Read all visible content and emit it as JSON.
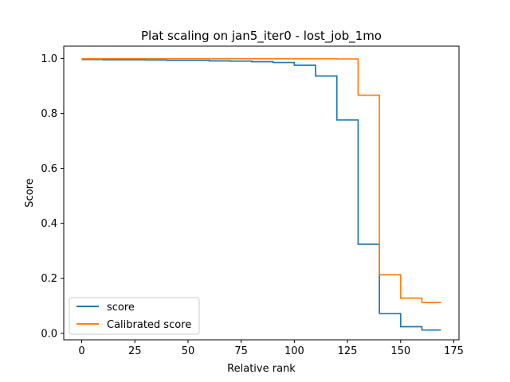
{
  "chart_data": {
    "type": "line",
    "title": "Plat scaling on jan5_iter0 - lost_job_1mo",
    "xlabel": "Relative rank",
    "ylabel": "Score",
    "xlim": [
      -8.45,
      177.45
    ],
    "ylim": [
      -0.0237,
      1.0445
    ],
    "xticks": [
      0,
      25,
      50,
      75,
      100,
      125,
      150,
      175
    ],
    "xtick_labels": [
      "0",
      "25",
      "50",
      "75",
      "100",
      "125",
      "150",
      "175"
    ],
    "yticks": [
      0.0,
      0.2,
      0.4,
      0.6,
      0.8,
      1.0
    ],
    "ytick_labels": [
      "0.0",
      "0.2",
      "0.4",
      "0.6",
      "0.8",
      "1.0"
    ],
    "grid": false,
    "legend": "lower-left",
    "series": [
      {
        "name": "score",
        "color": "#1f77b4",
        "step_x": [
          0,
          10,
          20,
          30,
          40,
          50,
          60,
          70,
          80,
          90,
          100,
          110,
          120,
          130,
          140,
          150,
          160,
          169
        ],
        "step_y": [
          0.996,
          0.995,
          0.995,
          0.994,
          0.993,
          0.993,
          0.991,
          0.99,
          0.988,
          0.985,
          0.975,
          0.936,
          0.776,
          0.324,
          0.072,
          0.024,
          0.012,
          0.012
        ]
      },
      {
        "name": "Calibrated score",
        "color": "#ff7f0e",
        "step_x": [
          0,
          10,
          20,
          30,
          40,
          50,
          60,
          70,
          80,
          90,
          100,
          110,
          120,
          130,
          140,
          150,
          160,
          169
        ],
        "step_y": [
          0.999,
          0.999,
          0.999,
          0.999,
          0.999,
          0.999,
          0.999,
          0.999,
          0.999,
          0.999,
          0.999,
          0.999,
          0.998,
          0.866,
          0.213,
          0.128,
          0.112,
          0.112
        ]
      }
    ]
  }
}
